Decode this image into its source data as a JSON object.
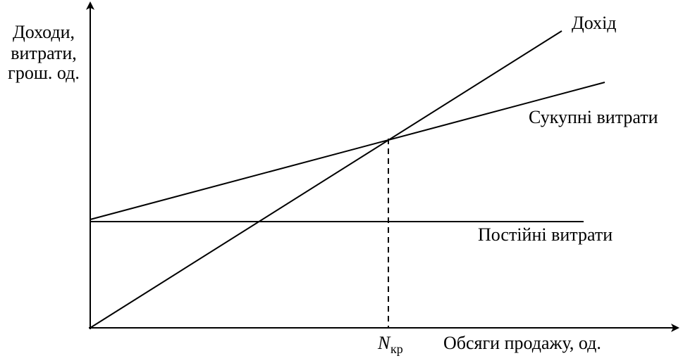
{
  "axes": {
    "y_label": [
      "Доходи,",
      "витрати,",
      "грош. од."
    ],
    "x_label": "Обсяги продажу, од."
  },
  "lines": [
    {
      "label": "Дохід"
    },
    {
      "label": "Сукупні витрати"
    },
    {
      "label": "Постійні витрати"
    }
  ],
  "break_even": {
    "label": "N",
    "subscript": "кр"
  }
}
